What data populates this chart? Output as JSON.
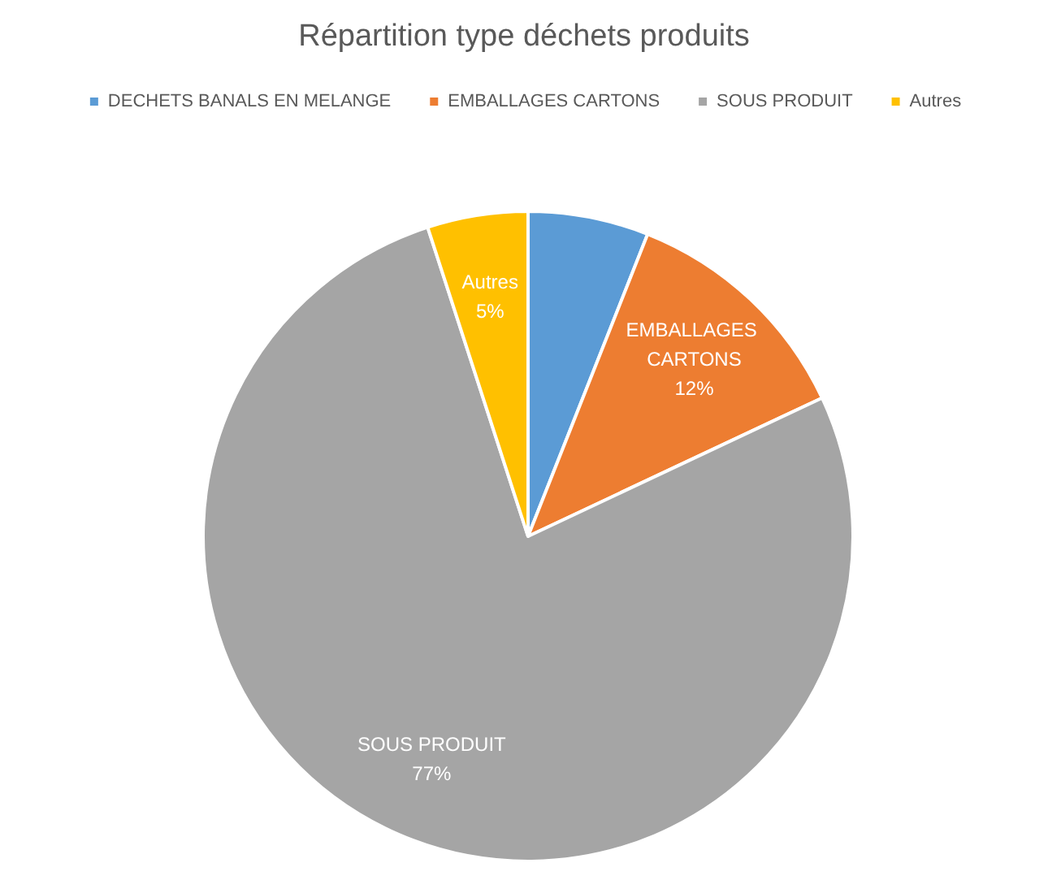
{
  "chart_data": {
    "type": "pie",
    "title": "Répartition type déchets produits",
    "categories": [
      "DECHETS BANALS EN MELANGE",
      "EMBALLAGES CARTONS",
      "SOUS PRODUIT",
      "Autres"
    ],
    "values": [
      6,
      12,
      77,
      5
    ],
    "colors": [
      "#5b9bd5",
      "#ed7d31",
      "#a5a5a5",
      "#ffc000"
    ],
    "value_labels": [
      null,
      "12%",
      "77%",
      "5%"
    ],
    "legend": "top"
  }
}
